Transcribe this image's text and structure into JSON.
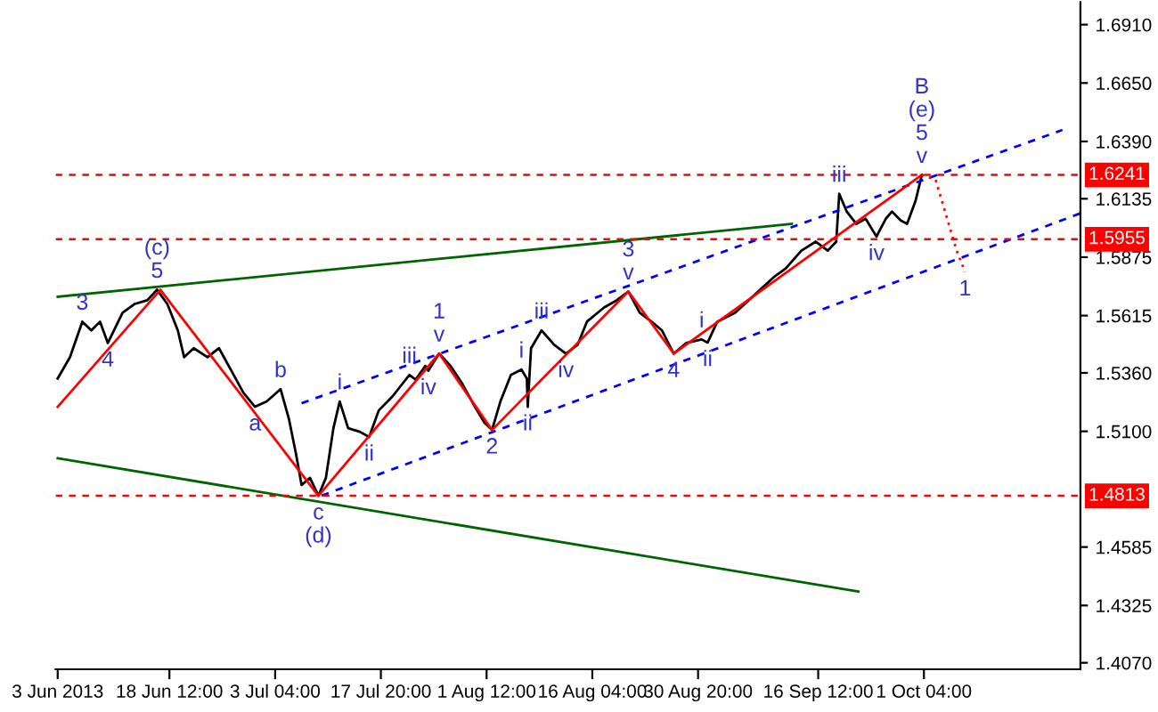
{
  "chart_data": {
    "type": "line",
    "xlim": [
      "2013-06-02T17:00",
      "2013-10-22T21:00"
    ],
    "xticks": [
      {
        "value": "2013-06-03T00:00",
        "label": "3 Jun 2013"
      },
      {
        "value": "2013-06-18T12:00",
        "label": "18 Jun 12:00"
      },
      {
        "value": "2013-07-03T04:00",
        "label": "3 Jul 04:00"
      },
      {
        "value": "2013-07-17T20:00",
        "label": "17 Jul 20:00"
      },
      {
        "value": "2013-08-01T12:00",
        "label": "1 Aug 12:00"
      },
      {
        "value": "2013-08-16T04:00",
        "label": "16 Aug 04:00"
      },
      {
        "value": "2013-08-30T20:00",
        "label": "30 Aug 20:00"
      },
      {
        "value": "2013-09-16T12:00",
        "label": "16 Sep 12:00"
      },
      {
        "value": "2013-10-01T04:00",
        "label": "1 Oct 04:00"
      }
    ],
    "ylim": [
      1.4041,
      1.701
    ],
    "yticks": [
      {
        "value": 1.691,
        "label": "1.6910"
      },
      {
        "value": 1.665,
        "label": "1.6650"
      },
      {
        "value": 1.639,
        "label": "1.6390"
      },
      {
        "value": 1.6135,
        "label": "1.6135"
      },
      {
        "value": 1.5875,
        "label": "1.5875"
      },
      {
        "value": 1.5615,
        "label": "1.5615"
      },
      {
        "value": 1.536,
        "label": "1.5360"
      },
      {
        "value": 1.51,
        "label": "1.5100"
      },
      {
        "value": 1.4585,
        "label": "1.4585"
      },
      {
        "value": 1.4325,
        "label": "1.4325"
      },
      {
        "value": 1.407,
        "label": "1.4070"
      }
    ],
    "grid": false,
    "legend": false,
    "series": [
      {
        "color": "#000000",
        "line_style": "solid",
        "x": [
          "2013-06-03T00:00",
          "2013-06-04T17:00",
          "2013-06-06T10:00",
          "2013-06-07T16:00",
          "2013-06-08T21:00",
          "2013-06-09T23:00",
          "2013-06-12T00:00",
          "2013-06-13T17:00",
          "2013-06-15T10:00",
          "2013-06-16T19:00",
          "2013-06-18T05:00",
          "2013-06-19T16:00",
          "2013-06-20T13:00",
          "2013-06-21T21:00",
          "2013-06-23T19:00",
          "2013-06-25T09:00",
          "2013-06-27T00:00",
          "2013-06-28T18:00",
          "2013-06-30T09:00",
          "2013-07-02T00:00",
          "2013-07-03T22:00",
          "2013-07-05T02:00",
          "2013-07-06T02:00",
          "2013-07-06T20:00",
          "2013-07-08T00:00",
          "2013-07-09T04:00",
          "2013-07-10T05:00",
          "2013-07-11T06:00",
          "2013-07-12T03:00",
          "2013-07-13T07:00",
          "2013-07-14T22:00",
          "2013-07-16T05:00",
          "2013-07-17T13:00",
          "2013-07-19T11:00",
          "2013-07-21T19:00",
          "2013-07-22T16:00",
          "2013-07-24T00:00",
          "2013-07-24T10:00",
          "2013-07-25T22:00",
          "2013-07-27T12:00",
          "2013-07-29T03:00",
          "2013-07-30T21:00",
          "2013-08-01T05:00",
          "2013-08-02T06:00",
          "2013-08-03T10:00",
          "2013-08-04T21:00",
          "2013-08-06T08:00",
          "2013-08-07T02:00",
          "2013-08-07T05:00",
          "2013-08-07T16:00",
          "2013-08-09T03:00",
          "2013-08-10T21:00",
          "2013-08-12T12:00",
          "2013-08-14T03:00",
          "2013-08-15T10:00",
          "2013-08-17T19:00",
          "2013-08-19T13:00",
          "2013-08-21T04:00",
          "2013-08-22T18:00",
          "2013-08-24T09:00",
          "2013-08-25T20:00",
          "2013-08-27T11:00",
          "2013-08-29T05:00",
          "2013-08-31T08:00",
          "2013-09-01T04:00",
          "2013-09-02T12:00",
          "2013-09-05T00:00",
          "2013-09-07T16:00",
          "2013-09-10T08:00",
          "2013-09-12T00:00",
          "2013-09-14T04:00",
          "2013-09-16T04:00",
          "2013-09-17T20:00",
          "2013-09-19T00:00",
          "2013-09-19T10:00",
          "2013-09-20T11:00",
          "2013-09-21T19:00",
          "2013-09-23T02:00",
          "2013-09-24T14:00",
          "2013-09-25T21:00",
          "2013-09-26T18:00",
          "2013-09-27T23:00",
          "2013-09-28T20:00",
          "2013-09-30T00:00",
          "2013-09-30T21:00"
        ],
        "values": [
          1.5335,
          1.543,
          1.5588,
          1.5549,
          1.5588,
          1.5493,
          1.5628,
          1.5667,
          1.5683,
          1.573,
          1.5667,
          1.5549,
          1.543,
          1.547,
          1.543,
          1.547,
          1.5375,
          1.5272,
          1.5209,
          1.5233,
          1.5288,
          1.5154,
          1.4996,
          1.4861,
          1.4893,
          1.4813,
          1.4893,
          1.5114,
          1.5233,
          1.5114,
          1.5098,
          1.5075,
          1.5193,
          1.5256,
          1.5351,
          1.533,
          1.5391,
          1.537,
          1.5446,
          1.5391,
          1.5312,
          1.5209,
          1.5138,
          1.5106,
          1.5233,
          1.5351,
          1.5375,
          1.5335,
          1.5209,
          1.547,
          1.5549,
          1.5485,
          1.5446,
          1.5485,
          1.5588,
          1.5651,
          1.5683,
          1.5722,
          1.5628,
          1.5588,
          1.5549,
          1.5446,
          1.5493,
          1.5509,
          1.5495,
          1.5588,
          1.5628,
          1.5707,
          1.5786,
          1.5825,
          1.5904,
          1.5944,
          1.5904,
          1.5944,
          1.6157,
          1.6078,
          1.6023,
          1.6046,
          1.5967,
          1.6046,
          1.6078,
          1.6038,
          1.6023,
          1.6125,
          1.6241
        ]
      },
      {
        "color": "#006400",
        "line_style": "solid",
        "x": [
          "2013-06-03T00:00",
          "2013-09-12T20:00"
        ],
        "values": [
          1.5699,
          1.6023
        ]
      },
      {
        "color": "#006400",
        "line_style": "solid",
        "x": [
          "2013-06-03T00:00",
          "2013-09-22T02:00"
        ],
        "values": [
          1.498,
          1.4387
        ]
      },
      {
        "color": "#0000ff",
        "line_style": "dashed",
        "x": [
          "2013-07-06T20:00",
          "2013-10-20T09:00"
        ],
        "values": [
          1.5225,
          1.6441
        ]
      },
      {
        "color": "#0000ff",
        "line_style": "dashed",
        "x": [
          "2013-07-09T15:00",
          "2013-10-22T21:00"
        ],
        "values": [
          1.4814,
          1.607
        ]
      },
      {
        "color": "#ff0000",
        "line_style": "solid",
        "x": [
          "2013-06-03T00:00",
          "2013-06-17T06:00",
          "2013-07-09T04:00",
          "2013-07-25T22:00",
          "2013-08-02T06:00",
          "2013-08-21T04:00",
          "2013-08-27T11:00",
          "2013-09-30T21:00"
        ],
        "values": [
          1.5209,
          1.573,
          1.4813,
          1.5446,
          1.5106,
          1.5722,
          1.5446,
          1.6241
        ]
      },
      {
        "color": "#ff0000",
        "line_style": "dotted",
        "x": [
          "2013-09-30T21:00",
          "2013-10-02T19:00",
          "2013-10-05T17:00",
          "2013-10-06T21:00"
        ],
        "values": [
          1.6241,
          1.622,
          1.5904,
          1.5809
        ]
      }
    ],
    "ref_lines": [
      {
        "axis": "y",
        "value": 1.6241,
        "label": "1.6241",
        "color": "#ff0000",
        "line_style": "dashed"
      },
      {
        "axis": "y",
        "value": 1.5955,
        "label": "1.5955",
        "color": "#ff0000",
        "line_style": "dashed"
      },
      {
        "axis": "y",
        "value": 1.4813,
        "label": "1.4813",
        "color": "#ff0000",
        "line_style": "dashed"
      }
    ],
    "annotations": [
      {
        "text": "3",
        "x": "2013-06-06T10:00",
        "y": 1.5588
      },
      {
        "text": "4",
        "x": "2013-06-09T23:00",
        "y": 1.5493
      },
      {
        "text": "(c)\n5",
        "x": "2013-06-16T19:00",
        "y": 1.573
      },
      {
        "text": "a",
        "x": "2013-06-30T09:00",
        "y": 1.5209
      },
      {
        "text": "b",
        "x": "2013-07-03T22:00",
        "y": 1.5288
      },
      {
        "text": "c\n(d)",
        "x": "2013-07-09T04:00",
        "y": 1.4813
      },
      {
        "text": "i",
        "x": "2013-07-12T03:00",
        "y": 1.5233
      },
      {
        "text": "ii",
        "x": "2013-07-16T05:00",
        "y": 1.5075
      },
      {
        "text": "iii",
        "x": "2013-07-21T19:00",
        "y": 1.5351
      },
      {
        "text": "iv",
        "x": "2013-07-24T10:00",
        "y": 1.537
      },
      {
        "text": "1\nv",
        "x": "2013-07-25T22:00",
        "y": 1.5446
      },
      {
        "text": "2",
        "x": "2013-08-02T06:00",
        "y": 1.5106
      },
      {
        "text": "i",
        "x": "2013-08-06T08:00",
        "y": 1.5375
      },
      {
        "text": "ii",
        "x": "2013-08-07T05:00",
        "y": 1.5209
      },
      {
        "text": "iii",
        "x": "2013-08-09T03:00",
        "y": 1.5549
      },
      {
        "text": "iv",
        "x": "2013-08-12T12:00",
        "y": 1.5446
      },
      {
        "text": "3\nv",
        "x": "2013-08-21T04:00",
        "y": 1.5722
      },
      {
        "text": "4",
        "x": "2013-08-27T11:00",
        "y": 1.5446
      },
      {
        "text": "i",
        "x": "2013-08-31T08:00",
        "y": 1.5509
      },
      {
        "text": "ii",
        "x": "2013-09-01T04:00",
        "y": 1.5495
      },
      {
        "text": "iii",
        "x": "2013-09-19T10:00",
        "y": 1.6157
      },
      {
        "text": "iv",
        "x": "2013-09-24T14:00",
        "y": 1.5967
      },
      {
        "text": "B\n(e)\n5\nv",
        "x": "2013-09-30T21:00",
        "y": 1.6241
      },
      {
        "text": "1",
        "x": "2013-10-06T21:00",
        "y": 1.5809
      }
    ]
  }
}
